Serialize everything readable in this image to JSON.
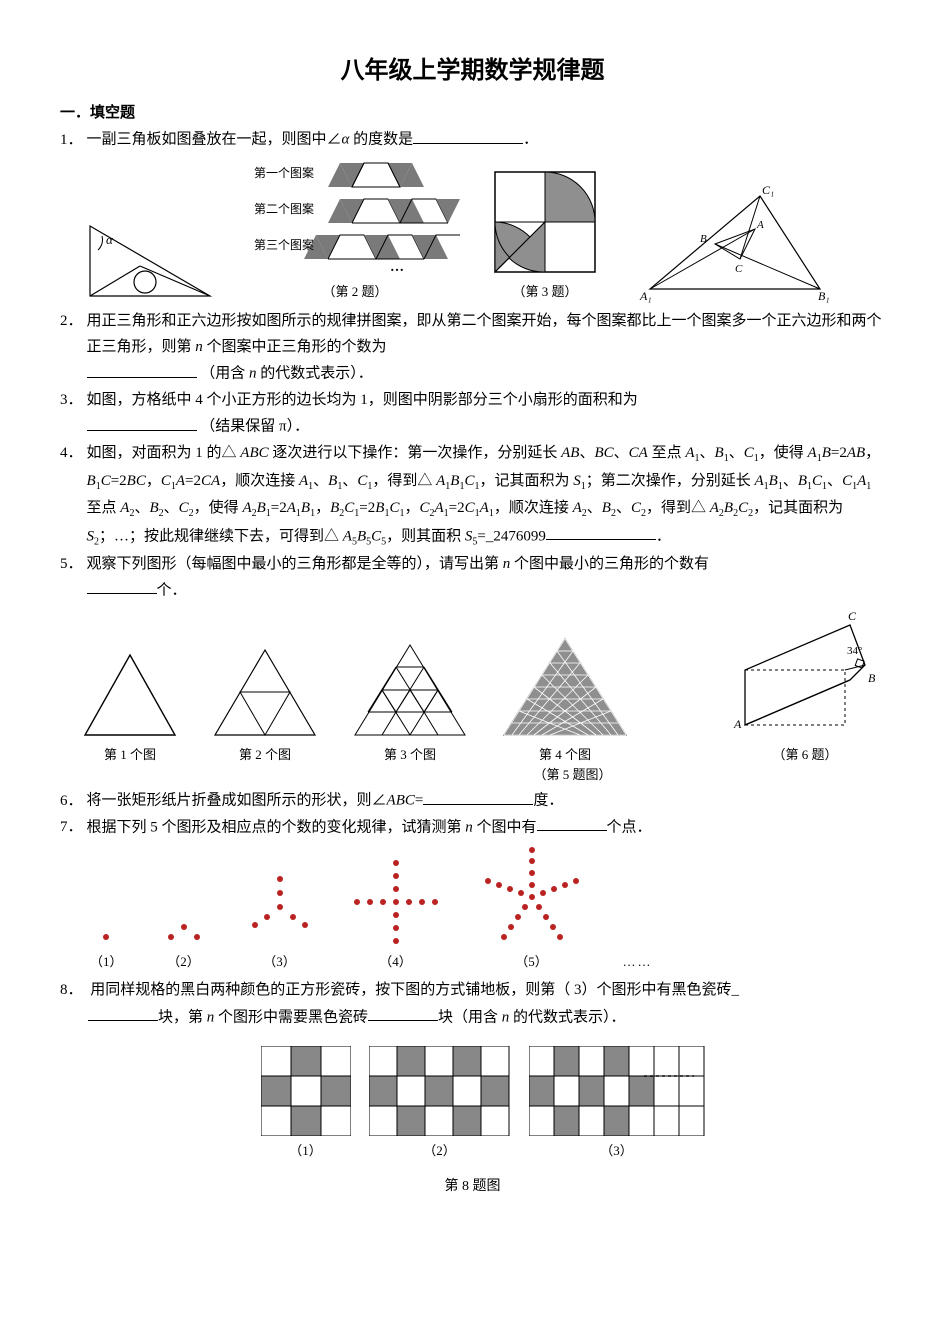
{
  "title": "八年级上学期数学规律题",
  "section": "一．填空题",
  "q1": {
    "num": "1．",
    "text_a": "一副三角板如图叠放在一起，则图中∠",
    "alpha": "α",
    "text_b": " 的度数是",
    "text_c": "．"
  },
  "fig2_labels": {
    "p1": "第一个图案",
    "p2": "第二个图案",
    "p3": "第三个图案",
    "dots": "…",
    "cap": "（第 2 题）"
  },
  "fig3_cap": "（第 3 题）",
  "fig4_labels": {
    "A": "A",
    "B": "B",
    "C": "C",
    "A1": "A₁",
    "B1": "B₁",
    "C1": "C₁"
  },
  "q2": {
    "num": "2．",
    "text_a": "用正三角形和正六边形按如图所示的规律拼图案，即从第二个图案开始，每个图案都比上一个图案多一个正六边形和两个正三角形，则第 ",
    "n": "n",
    "text_b": " 个图案中正三角形的个数为",
    "text_c": "（用含 ",
    "text_d": " 的代数式表示）．"
  },
  "q3": {
    "num": "3．",
    "text_a": "如图，方格纸中 4 个小正方形的边长均为 1，则图中阴影部分三个小扇形的面积和为",
    "text_b": "（结果保留 π）．"
  },
  "q4": {
    "num": "4．",
    "text": "如图，对面积为 1 的△ <span class='ital'>ABC</span> 逐次进行以下操作：第一次操作，分别延长 <span class='ital'>AB</span>、<span class='ital'>BC</span>、<span class='ital'>CA</span> 至点 <span class='ital'>A</span><span class='sub'>1</span>、<span class='ital'>B</span><span class='sub'>1</span>、<span class='ital'>C</span><span class='sub'>1</span>，使得 <span class='ital'>A</span><span class='sub'>1</span><span class='ital'>B</span>=2<span class='ital'>AB</span>，<span class='ital'>B</span><span class='sub'>1</span><span class='ital'>C</span>=2<span class='ital'>BC</span>，<span class='ital'>C</span><span class='sub'>1</span><span class='ital'>A</span>=2<span class='ital'>CA</span>，顺次连接 <span class='ital'>A</span><span class='sub'>1</span>、<span class='ital'>B</span><span class='sub'>1</span>、<span class='ital'>C</span><span class='sub'>1</span>，得到△ <span class='ital'>A</span><span class='sub'>1</span><span class='ital'>B</span><span class='sub'>1</span><span class='ital'>C</span><span class='sub'>1</span>，记其面积为 <span class='ital'>S</span><span class='sub'>1</span>；第二次操作，分别延长 <span class='ital'>A</span><span class='sub'>1</span><span class='ital'>B</span><span class='sub'>1</span>、<span class='ital'>B</span><span class='sub'>1</span><span class='ital'>C</span><span class='sub'>1</span>、<span class='ital'>C</span><span class='sub'>1</span><span class='ital'>A</span><span class='sub'>1</span> 至点 <span class='ital'>A</span><span class='sub'>2</span>、<span class='ital'>B</span><span class='sub'>2</span>、<span class='ital'>C</span><span class='sub'>2</span>，使得 <span class='ital'>A</span><span class='sub'>2</span><span class='ital'>B</span><span class='sub'>1</span>=2<span class='ital'>A</span><span class='sub'>1</span><span class='ital'>B</span><span class='sub'>1</span>，<span class='ital'>B</span><span class='sub'>2</span><span class='ital'>C</span><span class='sub'>1</span>=2<span class='ital'>B</span><span class='sub'>1</span><span class='ital'>C</span><span class='sub'>1</span>，<span class='ital'>C</span><span class='sub'>2</span><span class='ital'>A</span><span class='sub'>1</span>=2<span class='ital'>C</span><span class='sub'>1</span><span class='ital'>A</span><span class='sub'>1</span>，顺次连接 <span class='ital'>A</span><span class='sub'>2</span>、<span class='ital'>B</span><span class='sub'>2</span>、<span class='ital'>C</span><span class='sub'>2</span>，得到△ <span class='ital'>A</span><span class='sub'>2</span><span class='ital'>B</span><span class='sub'>2</span><span class='ital'>C</span><span class='sub'>2</span>，记其面积为 <span class='ital'>S</span><span class='sub'>2</span>；…；按此规律继续下去，可得到△ <span class='ital'>A</span><span class='sub'>5</span><span class='ital'>B</span><span class='sub'>5</span><span class='ital'>C</span><span class='sub'>5</span>，则其面积 <span class='ital'>S</span><span class='sub'>5</span>=_2476099<span class='blank long'></span>．"
  },
  "q5": {
    "num": "5．",
    "text_a": "观察下列图形（每幅图中最小的三角形都是全等的），请写出第 ",
    "n": "n",
    "text_b": " 个图中最小的三角形的个数有",
    "text_c": "个．"
  },
  "fig5": {
    "c1": "第 1 个图",
    "c2": "第 2 个图",
    "c3": "第 3 个图",
    "c4": "第 4 个图",
    "cap": "（第 5 题图）"
  },
  "fig6": {
    "A": "A",
    "B": "B",
    "C": "C",
    "ang": "34°",
    "cap": "（第 6 题）"
  },
  "q6": {
    "num": "6．",
    "text_a": "将一张矩形纸片折叠成如图所示的形状，则∠",
    "abc": "ABC",
    "eq": "=",
    "text_b": "度．"
  },
  "q7": {
    "num": "7．",
    "text_a": "根据下列 5 个图形及相应点的个数的变化规律，试猜测第 ",
    "n": "n",
    "text_b": " 个图中有",
    "text_c": "个点．"
  },
  "fig7": {
    "c1": "（1）",
    "c2": "（2）",
    "c3": "（3）",
    "c4": "（4）",
    "c5": "（5）",
    "ell": "……"
  },
  "q8": {
    "num": "8．",
    "text_a": "用同样规格的黑白两种颜色的正方形瓷砖，按下图的方式铺地板，则第（ 3）个图形中有黑色瓷砖_",
    "text_b": "块，第 ",
    "n": "n",
    "text_c": " 个图形中需要黑色瓷砖",
    "text_d": "块（用含 ",
    "text_e": " 的代数式表示）．"
  },
  "fig8": {
    "c1": "（1）",
    "c2": "（2）",
    "c3": "（3）",
    "cap": "第 8 题图"
  },
  "colors": {
    "line": "#000000",
    "fill_gray": "#7a7a7a",
    "fill_mid": "#8f8f8f",
    "fill_light": "#bdbdbd",
    "dot": "#bb2222",
    "bg": "#ffffff"
  }
}
